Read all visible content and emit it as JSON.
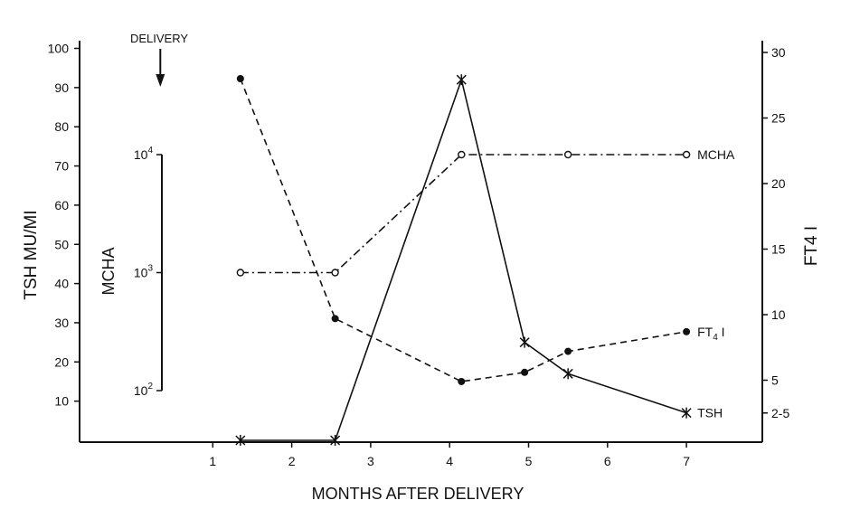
{
  "chart_data": {
    "type": "line",
    "xlabel": "MONTHS AFTER DELIVERY",
    "xlim": [
      0,
      7.6
    ],
    "xticks": [
      1,
      2,
      3,
      4,
      5,
      6,
      7
    ],
    "annotation": "DELIVERY",
    "annotation_x": 1.0,
    "left_axis": {
      "label": "TSH MU/MI",
      "ticks": [
        10,
        20,
        30,
        40,
        50,
        60,
        70,
        80,
        90,
        100
      ],
      "ylim": [
        0,
        100
      ]
    },
    "right_axis": {
      "label": "FT4 I",
      "ticks": [
        {
          "label": "2-5",
          "value": 2.5
        },
        {
          "label": "5",
          "value": 5
        },
        {
          "label": "10",
          "value": 10
        },
        {
          "label": "15",
          "value": 15
        },
        {
          "label": "20",
          "value": 20
        },
        {
          "label": "25",
          "value": 25
        },
        {
          "label": "30",
          "value": 30
        }
      ],
      "ylim": [
        0,
        30
      ]
    },
    "inner_axis": {
      "label": "MCHA",
      "scale": "log",
      "ticks": [
        {
          "base": "10",
          "exp": "2",
          "value": 100
        },
        {
          "base": "10",
          "exp": "3",
          "value": 1000
        },
        {
          "base": "10",
          "exp": "4",
          "value": 10000
        }
      ]
    },
    "series": [
      {
        "name": "TSH",
        "axis": "left",
        "style": "solid",
        "marker": "star",
        "x": [
          1.35,
          2.55,
          4.15,
          4.95,
          5.5,
          7.0
        ],
        "y": [
          0,
          0,
          92,
          25,
          17,
          7
        ]
      },
      {
        "name": "MCHA",
        "axis": "inner",
        "style": "dashdot",
        "marker": "open-circle",
        "x": [
          1.35,
          2.55,
          4.15,
          5.5,
          7.0
        ],
        "y": [
          1000,
          1000,
          10000,
          10000,
          10000
        ]
      },
      {
        "name": "FT4 I",
        "axis": "right",
        "style": "dashed",
        "marker": "filled-circle",
        "x": [
          1.35,
          2.55,
          4.15,
          4.95,
          5.5,
          7.0
        ],
        "y": [
          28,
          9.7,
          4.9,
          5.6,
          7.2,
          8.7
        ]
      }
    ],
    "series_labels": [
      {
        "series": "MCHA",
        "text": "MCHA"
      },
      {
        "series": "FT4 I",
        "text": "FT",
        "sub": "4",
        "tail": " I"
      },
      {
        "series": "TSH",
        "text": "TSH"
      }
    ]
  }
}
